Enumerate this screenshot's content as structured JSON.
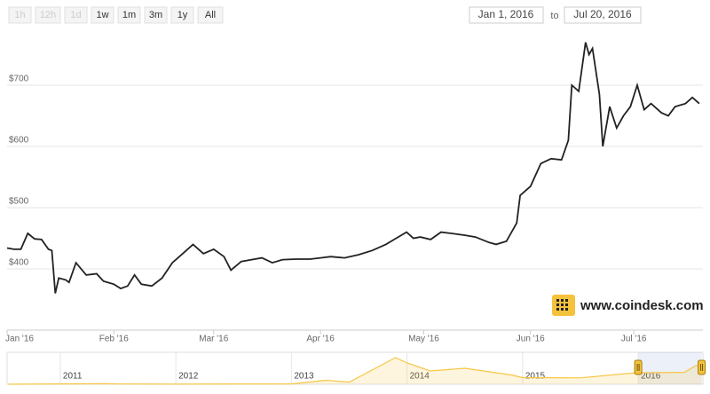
{
  "chart_data": {
    "type": "line",
    "range_selector": {
      "buttons": [
        {
          "label": "1h",
          "enabled": false
        },
        {
          "label": "12h",
          "enabled": false
        },
        {
          "label": "1d",
          "enabled": false
        },
        {
          "label": "1w",
          "enabled": true
        },
        {
          "label": "1m",
          "enabled": true
        },
        {
          "label": "3m",
          "enabled": true
        },
        {
          "label": "1y",
          "enabled": true
        },
        {
          "label": "All",
          "enabled": true
        }
      ]
    },
    "date_from": "Jan 1, 2016",
    "date_to_label": "to",
    "date_to": "Jul 20, 2016",
    "watermark": "www.coindesk.com",
    "color": "#222222",
    "x": [
      "2016-01-01",
      "2016-01-03",
      "2016-01-05",
      "2016-01-07",
      "2016-01-09",
      "2016-01-11",
      "2016-01-13",
      "2016-01-14",
      "2016-01-15",
      "2016-01-16",
      "2016-01-18",
      "2016-01-19",
      "2016-01-21",
      "2016-01-24",
      "2016-01-27",
      "2016-01-29",
      "2016-02-01",
      "2016-02-03",
      "2016-02-05",
      "2016-02-07",
      "2016-02-09",
      "2016-02-12",
      "2016-02-15",
      "2016-02-18",
      "2016-02-21",
      "2016-02-24",
      "2016-02-27",
      "2016-03-01",
      "2016-03-04",
      "2016-03-06",
      "2016-03-09",
      "2016-03-12",
      "2016-03-15",
      "2016-03-18",
      "2016-03-21",
      "2016-03-25",
      "2016-03-29",
      "2016-04-01",
      "2016-04-04",
      "2016-04-08",
      "2016-04-12",
      "2016-04-16",
      "2016-04-20",
      "2016-04-23",
      "2016-04-26",
      "2016-04-28",
      "2016-04-30",
      "2016-05-03",
      "2016-05-06",
      "2016-05-09",
      "2016-05-13",
      "2016-05-16",
      "2016-05-20",
      "2016-05-22",
      "2016-05-25",
      "2016-05-28",
      "2016-05-29",
      "2016-06-01",
      "2016-06-04",
      "2016-06-07",
      "2016-06-10",
      "2016-06-12",
      "2016-06-13",
      "2016-06-15",
      "2016-06-17",
      "2016-06-18",
      "2016-06-19",
      "2016-06-21",
      "2016-06-22",
      "2016-06-24",
      "2016-06-26",
      "2016-06-28",
      "2016-06-30",
      "2016-07-02",
      "2016-07-04",
      "2016-07-06",
      "2016-07-09",
      "2016-07-11",
      "2016-07-13",
      "2016-07-16",
      "2016-07-18",
      "2016-07-20"
    ],
    "values": [
      434,
      432,
      432,
      458,
      449,
      448,
      432,
      430,
      360,
      385,
      382,
      378,
      410,
      390,
      392,
      380,
      375,
      368,
      372,
      390,
      375,
      372,
      385,
      410,
      425,
      440,
      425,
      432,
      420,
      398,
      412,
      415,
      418,
      410,
      415,
      416,
      416,
      418,
      420,
      418,
      423,
      430,
      440,
      450,
      460,
      450,
      452,
      448,
      460,
      458,
      455,
      452,
      443,
      440,
      445,
      475,
      520,
      535,
      572,
      580,
      578,
      610,
      700,
      690,
      770,
      750,
      760,
      685,
      600,
      665,
      630,
      650,
      665,
      700,
      660,
      670,
      655,
      650,
      665,
      670,
      680,
      670
    ],
    "ylim": [
      300,
      800
    ],
    "yticks": [
      {
        "value": 400,
        "label": "$400"
      },
      {
        "value": 500,
        "label": "$500"
      },
      {
        "value": 600,
        "label": "$600"
      },
      {
        "value": 700,
        "label": "$700"
      }
    ],
    "xticks": [
      {
        "value": "2016-01-01",
        "label": "Jan '16"
      },
      {
        "value": "2016-02-01",
        "label": "Feb '16"
      },
      {
        "value": "2016-03-01",
        "label": "Mar '16"
      },
      {
        "value": "2016-04-01",
        "label": "Apr '16"
      },
      {
        "value": "2016-05-01",
        "label": "May '16"
      },
      {
        "value": "2016-06-01",
        "label": "Jun '16"
      },
      {
        "value": "2016-07-01",
        "label": "Jul '16"
      }
    ],
    "grid": true,
    "navigator": {
      "color": "#f7c646",
      "x": [
        2010.55,
        2011.4,
        2011.5,
        2012.0,
        2013.0,
        2013.3,
        2013.5,
        2013.9,
        2014.0,
        2014.2,
        2014.5,
        2014.9,
        2015.0,
        2015.5,
        2015.9,
        2016.0,
        2016.4,
        2016.5,
        2016.55
      ],
      "values": [
        0,
        20,
        10,
        5,
        15,
        150,
        80,
        1000,
        800,
        500,
        600,
        350,
        250,
        240,
        400,
        430,
        450,
        700,
        670
      ],
      "ylim": [
        0,
        1200
      ],
      "xlim": [
        2010.54,
        2016.56
      ],
      "xticks": [
        2011,
        2012,
        2013,
        2014,
        2015,
        2016
      ]
    }
  }
}
